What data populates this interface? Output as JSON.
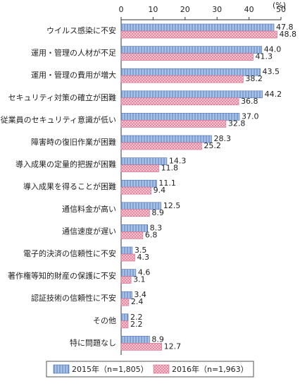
{
  "chart_data": {
    "type": "bar",
    "orientation": "horizontal",
    "unit": "(%)",
    "categories": [
      "ウイルス感染に不安",
      "運用・管理の人材が不足",
      "運用・管理の費用が増大",
      "セキュリティ対策の確立が困難",
      "従業員のセキュリティ意識が低い",
      "障害時の復旧作業が困難",
      "導入成果の定量的把握が困難",
      "導入成果を得ることが困難",
      "通信料金が高い",
      "通信速度が遅い",
      "電子的決済の信頼性に不安",
      "著作権等知的財産の保護に不安",
      "認証技術の信頼性に不安",
      "その他",
      "特に問題なし"
    ],
    "series": [
      {
        "name": "2015年（n=1,805）",
        "color": "#a8c1e6",
        "pattern": "vertical-lines",
        "values": [
          47.8,
          44.0,
          43.5,
          44.2,
          37.0,
          28.3,
          14.3,
          11.1,
          12.5,
          8.3,
          3.5,
          4.6,
          3.4,
          2.2,
          8.9
        ],
        "value_labels": [
          "47.8",
          "44.0",
          "43.5",
          "44.2",
          "37.0",
          "28.3",
          "14.3",
          "11.1",
          "12.5",
          "8.3",
          "3.5",
          "4.6",
          "3.4",
          "2.2",
          "8.9"
        ]
      },
      {
        "name": "2016年（n=1,963）",
        "color": "#f6c9d4",
        "pattern": "crosshatch",
        "values": [
          48.8,
          41.3,
          38.2,
          36.8,
          32.8,
          25.2,
          11.8,
          9.4,
          8.9,
          6.8,
          4.3,
          3.1,
          2.4,
          2.2,
          12.7
        ],
        "value_labels": [
          "48.8",
          "41.3",
          "38.2",
          "36.8",
          "32.8",
          "25.2",
          "11.8",
          "9.4",
          "8.9",
          "6.8",
          "4.3",
          "3.1",
          "2.4",
          "2.2",
          "12.7"
        ]
      }
    ],
    "xlim": [
      0,
      50
    ],
    "xticks": [
      0,
      10,
      20,
      30,
      40,
      50
    ]
  }
}
